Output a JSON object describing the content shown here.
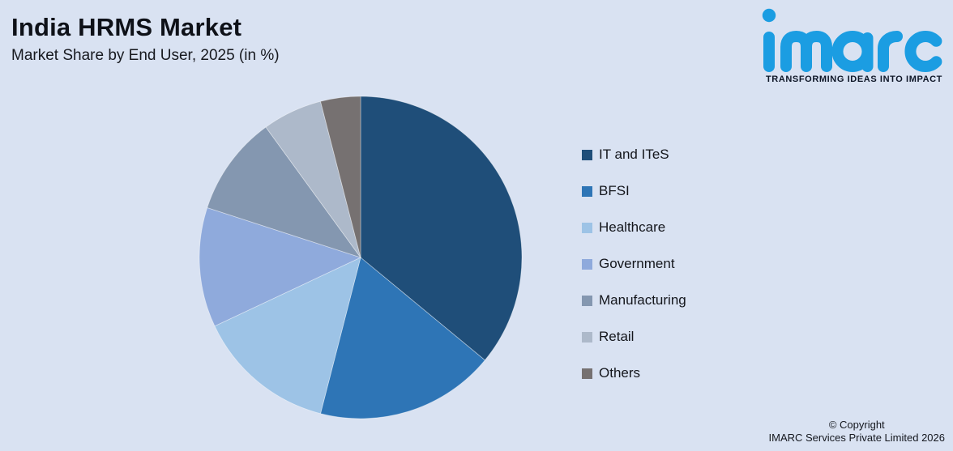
{
  "page": {
    "background_color": "#d9e2f2",
    "title": "India HRMS Market",
    "subtitle": "Market Share by End User, 2025 (in %)",
    "logo": {
      "wordmark": "imarc",
      "tagline": "TRANSFORMING IDEAS INTO IMPACT",
      "brand_color": "#1b9de2",
      "tagline_color": "#0d1526"
    },
    "footer": {
      "line1": "© Copyright",
      "line2": "IMARC Services Private Limited 2026"
    }
  },
  "chart_data": {
    "type": "pie",
    "title": "India HRMS Market",
    "subtitle": "Market Share by End User, 2025 (in %)",
    "unit": "%",
    "start_angle": "12 o'clock, clockwise",
    "legend_position": "right",
    "background_color": "#d9e2f2",
    "slices": [
      {
        "label": "IT and ITeS",
        "value": 36,
        "color": "#1f4e79"
      },
      {
        "label": "BFSI",
        "value": 18,
        "color": "#2e75b6"
      },
      {
        "label": "Healthcare",
        "value": 14,
        "color": "#9dc3e6"
      },
      {
        "label": "Government",
        "value": 12,
        "color": "#8faadc"
      },
      {
        "label": "Manufacturing",
        "value": 10,
        "color": "#8497b0"
      },
      {
        "label": "Retail",
        "value": 6,
        "color": "#adb9ca"
      },
      {
        "label": "Others",
        "value": 4,
        "color": "#767171"
      }
    ]
  }
}
